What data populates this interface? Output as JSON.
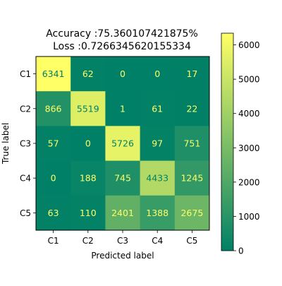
{
  "chart_data": {
    "type": "heatmap",
    "title_lines": [
      "Accuracy :75.360107421875%",
      "Loss :0.7266345620155334"
    ],
    "xlabel": "Predicted label",
    "ylabel": "True label",
    "x_categories": [
      "C1",
      "C2",
      "C3",
      "C4",
      "C5"
    ],
    "y_categories": [
      "C1",
      "C2",
      "C3",
      "C4",
      "C5"
    ],
    "values": [
      [
        6341,
        62,
        0,
        0,
        17
      ],
      [
        866,
        5519,
        1,
        61,
        22
      ],
      [
        57,
        0,
        5726,
        97,
        751
      ],
      [
        0,
        188,
        745,
        4433,
        1245
      ],
      [
        63,
        110,
        2401,
        1388,
        2675
      ]
    ],
    "colormap": "summer",
    "colorbar": {
      "range": [
        0,
        6341
      ],
      "ticks": [
        0,
        1000,
        2000,
        3000,
        4000,
        5000,
        6000
      ],
      "tick_labels": [
        "0",
        "1000",
        "2000",
        "3000",
        "4000",
        "5000",
        "6000"
      ]
    },
    "grid": false,
    "colors": {
      "cmap_low": "#008066",
      "cmap_high": "#ffff66",
      "text_on_dark": "#ffff66",
      "text_on_light": "#008066"
    }
  }
}
